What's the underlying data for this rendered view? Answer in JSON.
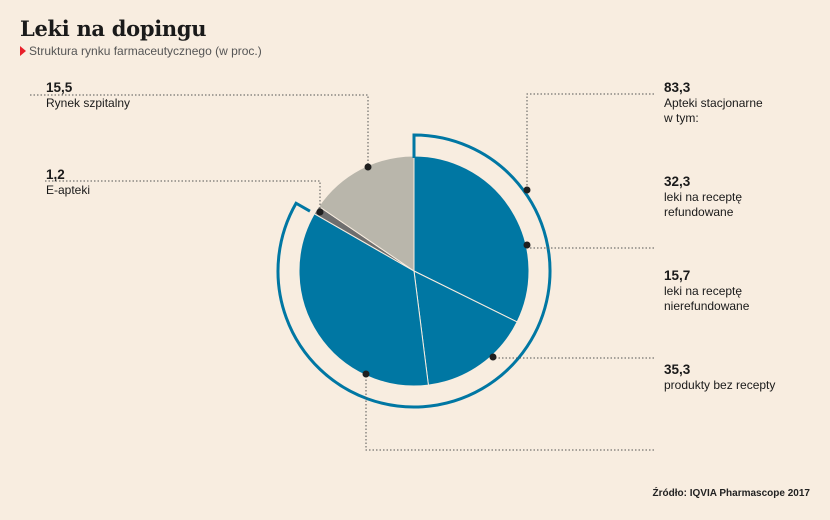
{
  "title": "Leki na dopingu",
  "subtitle": "Struktura rynku farmaceutycznego (w proc.)",
  "source": "Źródło: IQVIA Pharmascope 2017",
  "colors": {
    "blue": "#0077a3",
    "gray": "#b9b6ab",
    "dark_gray": "#6e6e6e",
    "background": "#f8ede0"
  },
  "chart_data": {
    "type": "pie",
    "unit": "proc.",
    "slices": [
      {
        "label": "leki na receptę refundowane",
        "value": 32.3,
        "color": "#0077a3"
      },
      {
        "label": "leki na receptę nierefundowane",
        "value": 15.7,
        "color": "#0077a3"
      },
      {
        "label": "produkty bez recepty",
        "value": 35.3,
        "color": "#0077a3"
      },
      {
        "label": "E-apteki",
        "value": 1.2,
        "color": "#6e6e6e"
      },
      {
        "label": "Rynek szpitalny",
        "value": 15.5,
        "color": "#b9b6ab"
      }
    ],
    "group": {
      "label": "Apteki stacjonarne\nw tym:",
      "value": 83.3,
      "members": [
        0,
        1,
        2
      ]
    }
  },
  "labels": {
    "apteki": {
      "value": "83,3",
      "text": "Apteki stacjonarne\nw tym:"
    },
    "refund": {
      "value": "32,3",
      "text": "leki na receptę\nrefundowane"
    },
    "nierefund": {
      "value": "15,7",
      "text": "leki na receptę\nnierefundowane"
    },
    "bez": {
      "value": "35,3",
      "text": "produkty bez recepty"
    },
    "szpital": {
      "value": "15,5",
      "text": "Rynek szpitalny"
    },
    "eapteki": {
      "value": "1,2",
      "text": "E-apteki"
    }
  }
}
